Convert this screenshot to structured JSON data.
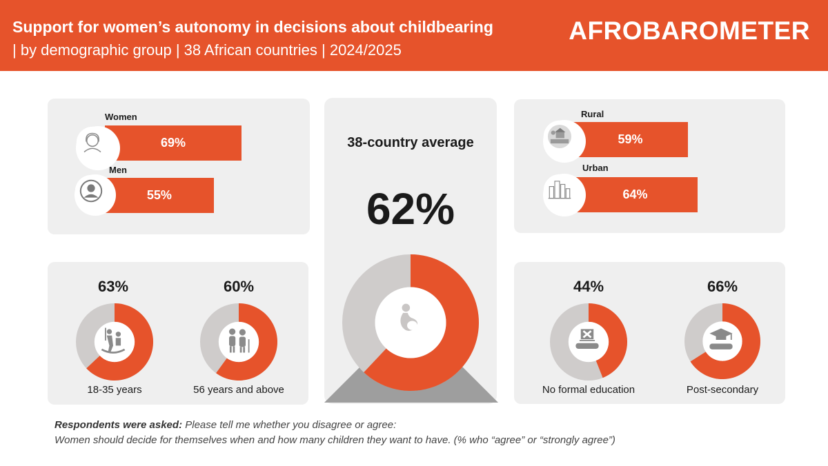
{
  "header": {
    "title": "Support for women’s autonomy in decisions about childbearing",
    "subtitle": "| by demographic group | 38 African countries | 2024/2025",
    "brand": "AFROBAROMETER"
  },
  "colors": {
    "accent": "#e6532b",
    "remainder": "#cfcccb",
    "panel": "#efefef",
    "pedestal": "#9e9e9e"
  },
  "chart_data": [
    {
      "type": "bar",
      "group": "gender",
      "categories": [
        "Women",
        "Men"
      ],
      "values": [
        69,
        55
      ],
      "value_labels": [
        "69%",
        "55%"
      ],
      "icons": [
        "woman-icon",
        "man-icon"
      ]
    },
    {
      "type": "bar",
      "group": "location",
      "categories": [
        "Rural",
        "Urban"
      ],
      "values": [
        59,
        64
      ],
      "value_labels": [
        "59%",
        "64%"
      ],
      "icons": [
        "rural-house-icon",
        "city-icon"
      ]
    },
    {
      "type": "pie",
      "group": "average",
      "title": "38-country average",
      "values": [
        62
      ],
      "value_labels": [
        "62%"
      ],
      "icon": "pregnant-woman-icon"
    },
    {
      "type": "pie",
      "group": "age",
      "categories": [
        "18-35 years",
        "56 years and above"
      ],
      "values": [
        63,
        60
      ],
      "value_labels": [
        "63%",
        "60%"
      ],
      "icons": [
        "young-people-icon",
        "elderly-couple-icon"
      ]
    },
    {
      "type": "pie",
      "group": "education",
      "categories": [
        "No formal education",
        "Post-secondary"
      ],
      "values": [
        44,
        66
      ],
      "value_labels": [
        "44%",
        "66%"
      ],
      "icons": [
        "no-education-icon",
        "graduation-icon"
      ]
    }
  ],
  "footer": {
    "question_lead": "Respondents were asked:",
    "question_text": " Please tell me whether you disagree or agree:",
    "statement": "Women should decide for themselves when and how many children they want to have. (% who “agree” or “strongly agree”)"
  }
}
